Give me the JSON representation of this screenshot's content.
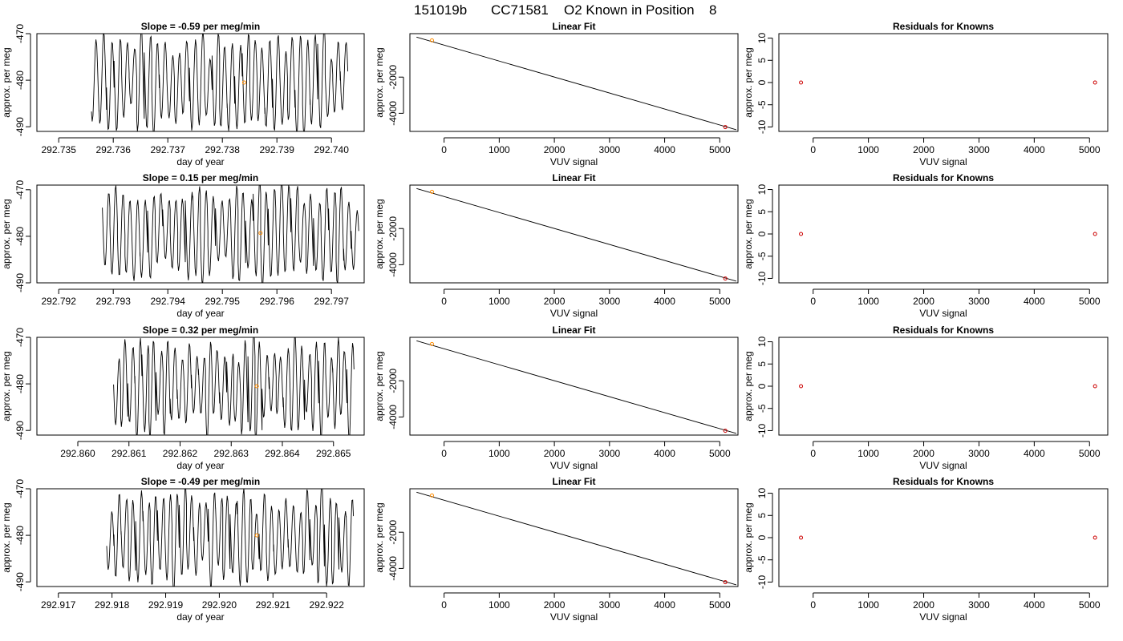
{
  "figure": {
    "suptitle_parts": [
      "151019b",
      "CC71581",
      "O2 Known in Position",
      "8"
    ]
  },
  "chart_data": [
    {
      "type": "line",
      "panel": "time-series",
      "title": "Slope =  -0.59  per meg/min",
      "xlabel": "day of year",
      "ylabel": "approx. per meg",
      "xlim": [
        292.7346,
        292.7406
      ],
      "ylim": [
        -491,
        -470
      ],
      "xticks": [
        "292.735",
        "292.736",
        "292.737",
        "292.738",
        "292.739",
        "292.740"
      ],
      "yticks": [
        "-470",
        "-480",
        "-490"
      ],
      "trace": {
        "start": 292.7356,
        "end": 292.7403,
        "cycles": 34,
        "seed": 1
      },
      "mark": {
        "x": 292.7384,
        "y": -480.5,
        "color": "#ff8c00"
      }
    },
    {
      "type": "scatter",
      "panel": "linear-fit",
      "title": "Linear Fit",
      "xlabel": "VUV signal",
      "ylabel": "approx. per meg",
      "xlim": [
        -620,
        5330
      ],
      "ylim": [
        -5000,
        400
      ],
      "xticks": [
        "0",
        "1000",
        "2000",
        "3000",
        "4000",
        "5000"
      ],
      "yticks": [
        "-2000",
        "-4000"
      ],
      "points": [
        {
          "x": -220,
          "y": 30,
          "color": "#ff8c00"
        },
        {
          "x": 5100,
          "y": -4760,
          "color": "#cc0000"
        }
      ],
      "fit_line": {
        "x": [
          -500,
          5300
        ],
        "y": [
          210,
          -4910
        ]
      }
    },
    {
      "type": "scatter",
      "panel": "residuals",
      "title": "Residuals for Knowns",
      "xlabel": "VUV signal",
      "ylabel": "approx. per meg",
      "xlim": [
        -620,
        5330
      ],
      "ylim": [
        -11,
        11
      ],
      "xticks": [
        "0",
        "1000",
        "2000",
        "3000",
        "4000",
        "5000"
      ],
      "yticks": [
        "10",
        "5",
        "0",
        "-5",
        "-10"
      ],
      "points": [
        {
          "x": -220,
          "y": 0,
          "color": "#cc0000"
        },
        {
          "x": 5100,
          "y": 0,
          "color": "#cc0000"
        }
      ]
    },
    {
      "type": "line",
      "panel": "time-series",
      "title": "Slope =  0.15  per meg/min",
      "xlabel": "day of year",
      "ylabel": "approx. per meg",
      "xlim": [
        292.7916,
        292.7976
      ],
      "ylim": [
        -490,
        -469
      ],
      "xticks": [
        "292.792",
        "292.793",
        "292.794",
        "292.795",
        "292.796",
        "292.797"
      ],
      "yticks": [
        "-470",
        "-480",
        "-490"
      ],
      "trace": {
        "start": 292.7928,
        "end": 292.7975,
        "cycles": 34,
        "seed": 2
      },
      "mark": {
        "x": 292.7957,
        "y": -479.3,
        "color": "#ff8c00"
      }
    },
    {
      "type": "scatter",
      "panel": "linear-fit",
      "title": "Linear Fit",
      "xlabel": "VUV signal",
      "ylabel": "approx. per meg",
      "xlim": [
        -620,
        5330
      ],
      "ylim": [
        -5000,
        400
      ],
      "xticks": [
        "0",
        "1000",
        "2000",
        "3000",
        "4000",
        "5000"
      ],
      "yticks": [
        "-2000",
        "-4000"
      ],
      "points": [
        {
          "x": -220,
          "y": 30,
          "color": "#ff8c00"
        },
        {
          "x": 5100,
          "y": -4760,
          "color": "#cc0000"
        }
      ],
      "fit_line": {
        "x": [
          -500,
          5300
        ],
        "y": [
          210,
          -4910
        ]
      }
    },
    {
      "type": "scatter",
      "panel": "residuals",
      "title": "Residuals for Knowns",
      "xlabel": "VUV signal",
      "ylabel": "approx. per meg",
      "xlim": [
        -620,
        5330
      ],
      "ylim": [
        -11,
        11
      ],
      "xticks": [
        "0",
        "1000",
        "2000",
        "3000",
        "4000",
        "5000"
      ],
      "yticks": [
        "10",
        "5",
        "0",
        "-5",
        "-10"
      ],
      "points": [
        {
          "x": -220,
          "y": 0,
          "color": "#cc0000"
        },
        {
          "x": 5100,
          "y": 0,
          "color": "#cc0000"
        }
      ]
    },
    {
      "type": "line",
      "panel": "time-series",
      "title": "Slope =  0.32  per meg/min",
      "xlabel": "day of year",
      "ylabel": "approx. per meg",
      "xlim": [
        292.8592,
        292.8656
      ],
      "ylim": [
        -491,
        -470
      ],
      "xticks": [
        "292.860",
        "292.861",
        "292.862",
        "292.863",
        "292.864",
        "292.865"
      ],
      "yticks": [
        "-470",
        "-480",
        "-490"
      ],
      "trace": {
        "start": 292.8607,
        "end": 292.8654,
        "cycles": 34,
        "seed": 3
      },
      "mark": {
        "x": 292.8635,
        "y": -480.5,
        "color": "#ff8c00"
      }
    },
    {
      "type": "scatter",
      "panel": "linear-fit",
      "title": "Linear Fit",
      "xlabel": "VUV signal",
      "ylabel": "approx. per meg",
      "xlim": [
        -620,
        5330
      ],
      "ylim": [
        -5000,
        400
      ],
      "xticks": [
        "0",
        "1000",
        "2000",
        "3000",
        "4000",
        "5000"
      ],
      "yticks": [
        "-2000",
        "-4000"
      ],
      "points": [
        {
          "x": -220,
          "y": 30,
          "color": "#ff8c00"
        },
        {
          "x": 5100,
          "y": -4760,
          "color": "#cc0000"
        }
      ],
      "fit_line": {
        "x": [
          -500,
          5300
        ],
        "y": [
          210,
          -4910
        ]
      }
    },
    {
      "type": "scatter",
      "panel": "residuals",
      "title": "Residuals for Knowns",
      "xlabel": "VUV signal",
      "ylabel": "approx. per meg",
      "xlim": [
        -620,
        5330
      ],
      "ylim": [
        -11,
        11
      ],
      "xticks": [
        "0",
        "1000",
        "2000",
        "3000",
        "4000",
        "5000"
      ],
      "yticks": [
        "10",
        "5",
        "0",
        "-5",
        "-10"
      ],
      "points": [
        {
          "x": -220,
          "y": 0,
          "color": "#cc0000"
        },
        {
          "x": 5100,
          "y": 0,
          "color": "#cc0000"
        }
      ]
    },
    {
      "type": "line",
      "panel": "time-series",
      "title": "Slope =  -0.49  per meg/min",
      "xlabel": "day of year",
      "ylabel": "approx. per meg",
      "xlim": [
        292.9166,
        292.9227
      ],
      "ylim": [
        -491,
        -470
      ],
      "xticks": [
        "292.917",
        "292.918",
        "292.919",
        "292.920",
        "292.921",
        "292.922"
      ],
      "yticks": [
        "-470",
        "-480",
        "-490"
      ],
      "trace": {
        "start": 292.9179,
        "end": 292.9225,
        "cycles": 34,
        "seed": 4
      },
      "mark": {
        "x": 292.9207,
        "y": -480.0,
        "color": "#ff8c00"
      }
    },
    {
      "type": "scatter",
      "panel": "linear-fit",
      "title": "Linear Fit",
      "xlabel": "VUV signal",
      "ylabel": "approx. per meg",
      "xlim": [
        -620,
        5330
      ],
      "ylim": [
        -5000,
        400
      ],
      "xticks": [
        "0",
        "1000",
        "2000",
        "3000",
        "4000",
        "5000"
      ],
      "yticks": [
        "-2000",
        "-4000"
      ],
      "points": [
        {
          "x": -220,
          "y": 30,
          "color": "#ff8c00"
        },
        {
          "x": 5100,
          "y": -4760,
          "color": "#cc0000"
        }
      ],
      "fit_line": {
        "x": [
          -500,
          5300
        ],
        "y": [
          210,
          -4910
        ]
      }
    },
    {
      "type": "scatter",
      "panel": "residuals",
      "title": "Residuals for Knowns",
      "xlabel": "VUV signal",
      "ylabel": "approx. per meg",
      "xlim": [
        -620,
        5330
      ],
      "ylim": [
        -11,
        11
      ],
      "xticks": [
        "0",
        "1000",
        "2000",
        "3000",
        "4000",
        "5000"
      ],
      "yticks": [
        "10",
        "5",
        "0",
        "-5",
        "-10"
      ],
      "points": [
        {
          "x": -220,
          "y": 0,
          "color": "#cc0000"
        },
        {
          "x": 5100,
          "y": 0,
          "color": "#cc0000"
        }
      ]
    }
  ]
}
